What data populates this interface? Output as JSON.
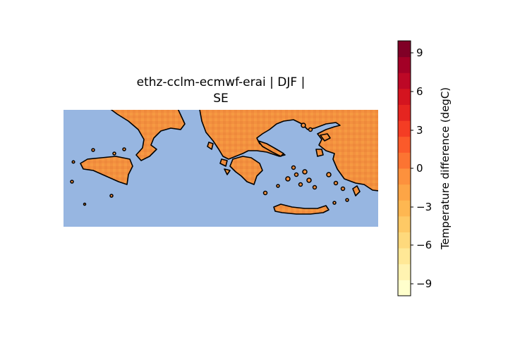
{
  "title": {
    "line1": "ethz-cclm-ecmwf-erai | DJF |",
    "line2": "SE"
  },
  "map": {
    "region": "Southeast Europe / Eastern Mediterranean",
    "ocean_color": "#97b6e1",
    "land_fill_colors": [
      "#f3903f",
      "#f7a245",
      "#ef8a3a",
      "#fa9c42"
    ],
    "coastline_color": "#000000"
  },
  "colorbar": {
    "label": "Temperature difference (degC)",
    "ticks": [
      "9",
      "6",
      "3",
      "0",
      "−3",
      "−6",
      "−9"
    ],
    "range": [
      -10,
      10
    ],
    "colormap": "YlOrRd",
    "colors": [
      "#ffffcc",
      "#fff3b1",
      "#ffe896",
      "#fed97c",
      "#fec965",
      "#feb751",
      "#fda546",
      "#fd913d",
      "#fc7432",
      "#fb5a2a",
      "#f43d24",
      "#e52520",
      "#d4141f",
      "#bd0826",
      "#a30026",
      "#800026"
    ]
  }
}
